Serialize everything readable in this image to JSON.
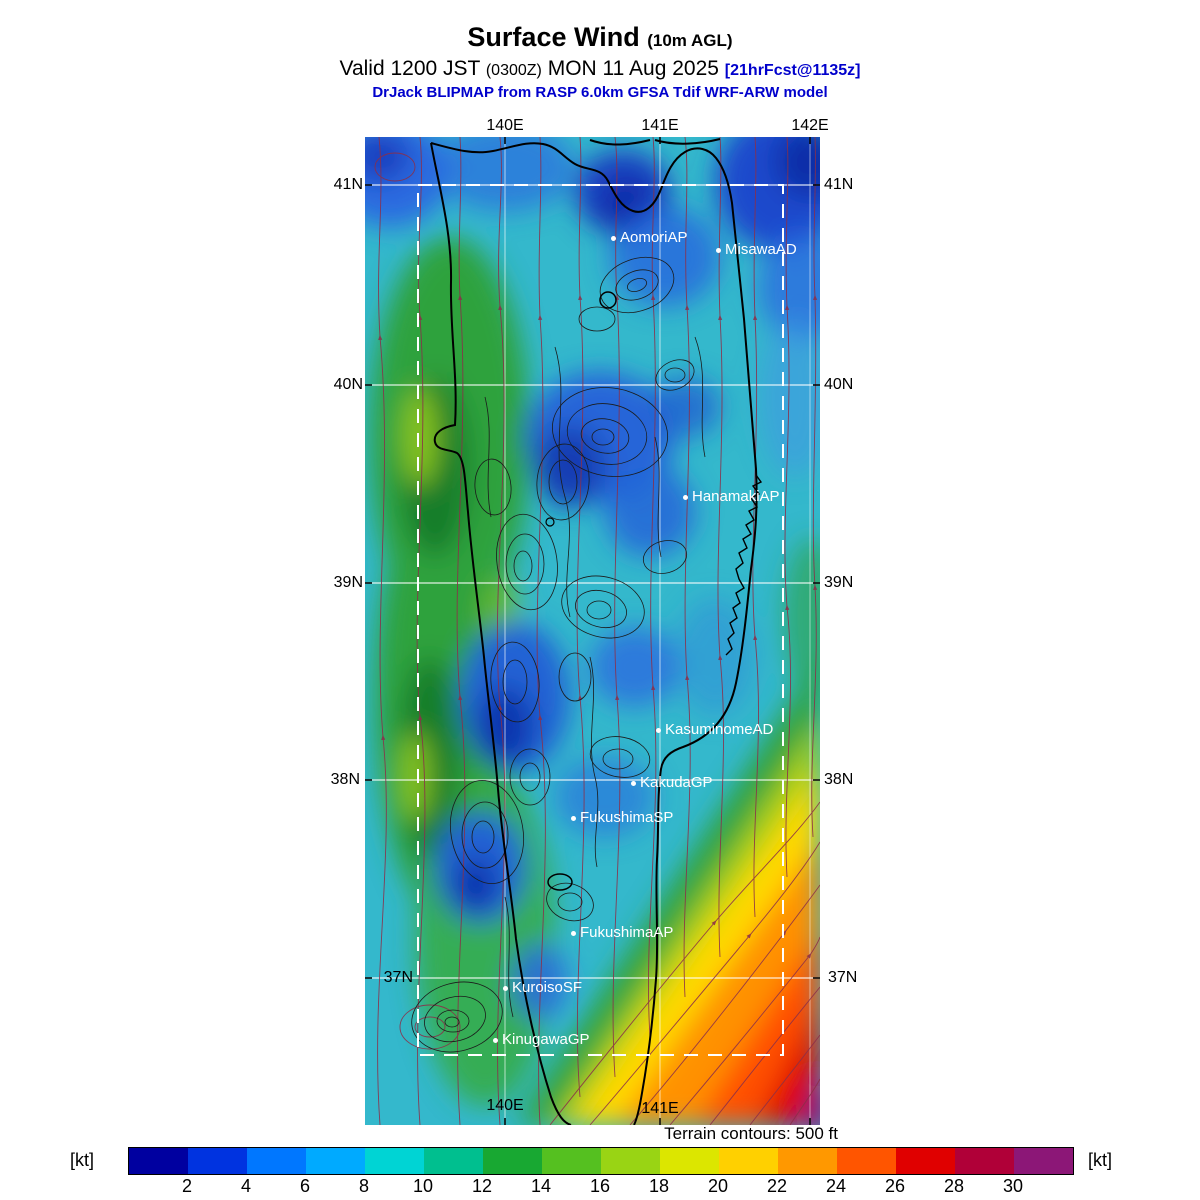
{
  "header": {
    "title": "Surface Wind",
    "title_note": "(10m AGL)",
    "valid_prefix": "Valid 1200 JST",
    "valid_zulu": "(0300Z)",
    "valid_date": "MON 11 Aug 2025",
    "forecast_tag": "[21hrFcst@1135z]",
    "model_line": "DrJack BLIPMAP from RASP 6.0km GFSA Tdif WRF-ARW model"
  },
  "map": {
    "top_lon_labels": [
      "140E",
      "141E",
      "142E"
    ],
    "bottom_lon_labels": [
      "140E",
      "141E"
    ],
    "lat_labels": [
      "41N",
      "40N",
      "39N",
      "38N",
      "37N"
    ],
    "stations": [
      "AomoriAP",
      "MisawaAD",
      "HanamakiAP",
      "KasuminomeAD",
      "KakudaGP",
      "FukushimaSP",
      "FukushimaAP",
      "KuroisoSF",
      "KinugawaGP"
    ],
    "footnote": "Terrain contours: 500 ft"
  },
  "colorbar": {
    "unit": "[kt]",
    "tick_labels": [
      "2",
      "4",
      "6",
      "8",
      "10",
      "12",
      "14",
      "16",
      "18",
      "20",
      "22",
      "24",
      "26",
      "28",
      "30"
    ],
    "colors": [
      "#0000a0",
      "#0033e0",
      "#0077ff",
      "#00aaff",
      "#00d4d4",
      "#00bf8f",
      "#18a832",
      "#55c020",
      "#99d414",
      "#dce600",
      "#ffd000",
      "#ff9800",
      "#ff5500",
      "#e00000",
      "#b00038",
      "#8c1777"
    ]
  }
}
